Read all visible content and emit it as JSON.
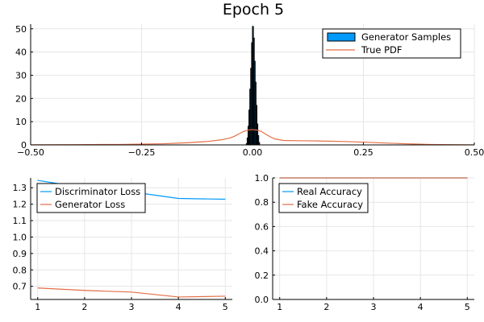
{
  "chart_data": [
    {
      "type": "histogram+line",
      "title": "Epoch 5",
      "xlim": [
        -0.5,
        0.5
      ],
      "ylim": [
        0,
        52
      ],
      "xticks": [
        -0.5,
        -0.25,
        0.0,
        0.25,
        0.5
      ],
      "xtick_labels": [
        "−0.50",
        "−0.25",
        "0.00",
        "0.25",
        "0.50"
      ],
      "yticks": [
        0,
        10,
        20,
        30,
        40,
        50
      ],
      "legend": [
        "Generator Samples",
        "True PDF"
      ],
      "legend_position": "top-right",
      "series": [
        {
          "name": "Generator Samples",
          "kind": "histogram",
          "color": "#009AFA",
          "bins": [
            {
              "x0": -0.014,
              "x1": -0.012,
              "count": 0.5
            },
            {
              "x0": -0.012,
              "x1": -0.01,
              "count": 3
            },
            {
              "x0": -0.01,
              "x1": -0.008,
              "count": 8
            },
            {
              "x0": -0.008,
              "x1": -0.006,
              "count": 15
            },
            {
              "x0": -0.006,
              "x1": -0.004,
              "count": 24
            },
            {
              "x0": -0.004,
              "x1": -0.002,
              "count": 33
            },
            {
              "x0": -0.002,
              "x1": 0.0,
              "count": 44
            },
            {
              "x0": 0.0,
              "x1": 0.002,
              "count": 51
            },
            {
              "x0": 0.002,
              "x1": 0.004,
              "count": 46
            },
            {
              "x0": 0.004,
              "x1": 0.006,
              "count": 36
            },
            {
              "x0": 0.006,
              "x1": 0.008,
              "count": 27
            },
            {
              "x0": 0.008,
              "x1": 0.01,
              "count": 17
            },
            {
              "x0": 0.01,
              "x1": 0.012,
              "count": 9
            },
            {
              "x0": 0.012,
              "x1": 0.014,
              "count": 4
            },
            {
              "x0": 0.014,
              "x1": 0.016,
              "count": 1
            }
          ]
        },
        {
          "name": "True PDF",
          "kind": "line",
          "color": "#E26F46",
          "x": [
            -0.5,
            -0.4,
            -0.3,
            -0.2,
            -0.15,
            -0.1,
            -0.07,
            -0.05,
            -0.04,
            -0.03,
            -0.02,
            -0.01,
            0.0,
            0.01,
            0.02,
            0.03,
            0.04,
            0.05,
            0.07,
            0.1,
            0.15,
            0.2,
            0.25,
            0.3,
            0.35,
            0.4,
            0.45,
            0.5
          ],
          "y": [
            0.05,
            0.1,
            0.2,
            0.5,
            0.9,
            1.5,
            2.2,
            3.0,
            3.8,
            4.8,
            5.8,
            6.4,
            6.6,
            6.4,
            5.8,
            4.6,
            3.5,
            2.6,
            1.9,
            1.8,
            1.7,
            1.5,
            1.2,
            0.8,
            0.45,
            0.2,
            0.08,
            0.03
          ]
        }
      ]
    },
    {
      "type": "line",
      "xlim": [
        0.85,
        5.15
      ],
      "ylim": [
        0.62,
        1.36
      ],
      "xticks": [
        1,
        2,
        3,
        4,
        5
      ],
      "yticks": [
        0.7,
        0.8,
        0.9,
        1.0,
        1.1,
        1.2,
        1.3
      ],
      "ytick_labels": [
        "0.7",
        "0.8",
        "0.9",
        "1.0",
        "1.1",
        "1.2",
        "1.3"
      ],
      "legend": [
        "Discriminator Loss",
        "Generator Loss"
      ],
      "legend_position": "top-left",
      "series": [
        {
          "name": "Discriminator Loss",
          "color": "#009AFA",
          "x": [
            1,
            2,
            3,
            4,
            5
          ],
          "y": [
            1.345,
            1.3,
            1.275,
            1.235,
            1.23
          ]
        },
        {
          "name": "Generator Loss",
          "color": "#E26F46",
          "x": [
            1,
            2,
            3,
            4,
            5
          ],
          "y": [
            0.69,
            0.675,
            0.665,
            0.635,
            0.64
          ]
        }
      ]
    },
    {
      "type": "line",
      "xlim": [
        0.85,
        5.15
      ],
      "ylim": [
        0.0,
        1.0
      ],
      "xticks": [
        1,
        2,
        3,
        4,
        5
      ],
      "yticks": [
        0.0,
        0.2,
        0.4,
        0.6,
        0.8,
        1.0
      ],
      "ytick_labels": [
        "0.0",
        "0.2",
        "0.4",
        "0.6",
        "0.8",
        "1.0"
      ],
      "legend": [
        "Real Accuracy",
        "Fake Accuracy"
      ],
      "legend_position": "top-left",
      "series": [
        {
          "name": "Real Accuracy",
          "color": "#009AFA",
          "x": [
            1,
            2,
            3,
            4,
            5
          ],
          "y": [
            1.0,
            1.0,
            1.0,
            1.0,
            1.0
          ]
        },
        {
          "name": "Fake Accuracy",
          "color": "#E26F46",
          "x": [
            1,
            2,
            3,
            4,
            5
          ],
          "y": [
            1.0,
            1.0,
            1.0,
            1.0,
            1.0
          ]
        }
      ]
    }
  ]
}
